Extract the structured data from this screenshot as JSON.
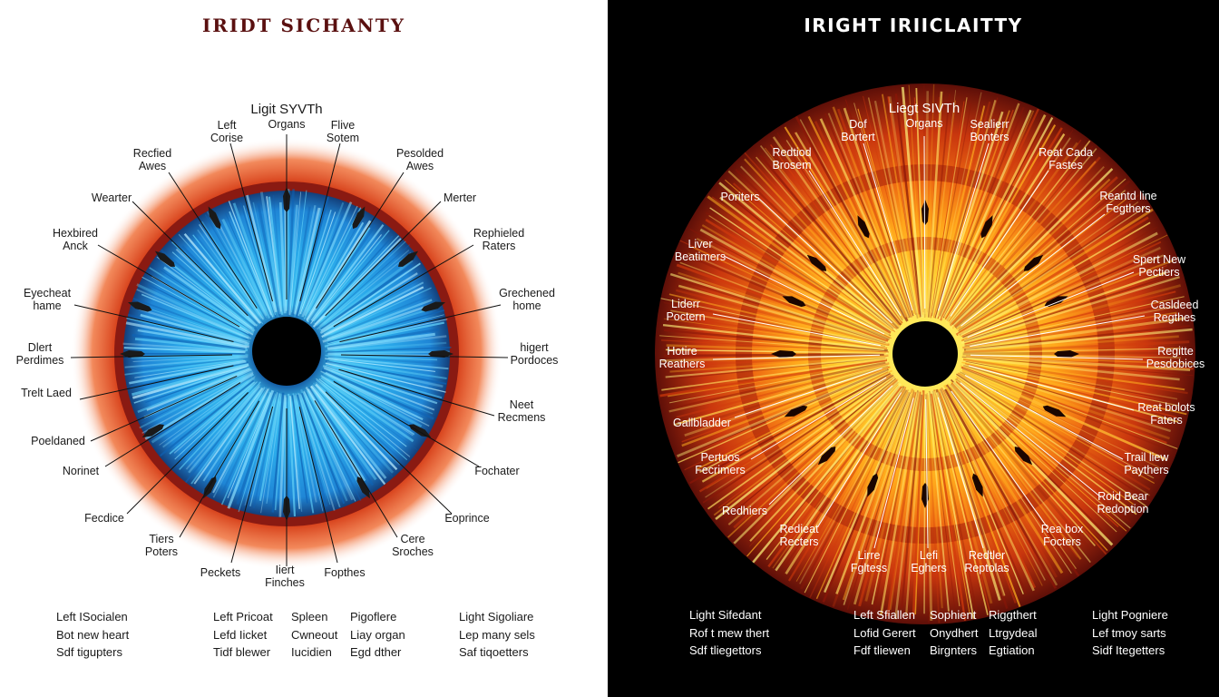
{
  "left_panel": {
    "title": "IRIDT SICHANTY",
    "top_label": "Ligit SYVTh",
    "labels": [
      "Organs",
      "Left\nCorise",
      "Flive\nSotem",
      "Recfied\nAwes",
      "Pesolded\nAwes",
      "Wearter",
      "Merter",
      "Hexbired\nAnck",
      "Rephieled\nRaters",
      "Eyecheat\nhame",
      "Grechened\nhome",
      "Dlert\nPerdimes",
      "higert\nPordoces",
      "Trelt Laed",
      "Neet\nRecmens",
      "Poeldaned",
      "Norinet",
      "Fochater",
      "Fecdice",
      "Eoprince",
      "Tiers\nPoters",
      "Cere\nSroches",
      "Peckets",
      "Iiert\nFinches",
      "Fopthes"
    ],
    "legend_columns": [
      [
        "Left ISocialen",
        "Bot new heart",
        "Sdf tigupters"
      ],
      [
        "Left Pricoat",
        "Lefd Iicket",
        "Tidf blewer"
      ],
      [
        "Spleen",
        "Cwneout",
        "Iucidien"
      ],
      [
        "Pigoflere",
        "Liay organ",
        "Egd dther"
      ],
      [
        "Light Sigoliare",
        "Lep many sels",
        "Saf tiqoetters"
      ]
    ],
    "colors": {
      "iris": "#29a6e6",
      "iris_deep": "#1a78c9",
      "rim": "#7a1a12",
      "halo": "#e2552a",
      "pupil": "#000000",
      "text": "#1a1a1a",
      "title": "#5a1010"
    }
  },
  "right_panel": {
    "title": "IRIGHT IRIICLAITTY",
    "top_label": "Liegt SIVTh",
    "labels": [
      "Organs",
      "Dof\nBortert",
      "Sealierr\nBonters",
      "Redtiod\nBrosem",
      "Reat Cada\nFastes",
      "Poriters",
      "Reantd line\nFegthers",
      "Liver\nBeatimers",
      "Spert New\nPectiers",
      "Liderr\nPoctern",
      "Casldeed\nRegthes",
      "Hotire\nReathers",
      "Regitte\nPesdobices",
      "Gallbladder",
      "Reat bolots\nFaters",
      "Pertuos\nFecrimers",
      "Trail liew\nPaythers",
      "Redhiers",
      "Roid Bear\nRedoption",
      "Redieat\nRecters",
      "Rea box\nFocters",
      "Lirre\nFgltess",
      "Lefi\nEghers",
      "Redtler\nReptolas"
    ],
    "legend_columns": [
      [
        "Light Sifedant",
        "Rof t mew thert",
        "Sdf tliegettors"
      ],
      [
        "Left Sfiallen",
        "Lofid Gerert",
        "Fdf tliewen"
      ],
      [
        "Sophient",
        "Onydhert",
        "Birgnters"
      ],
      [
        "Riggthert",
        "Ltrgydeal",
        "Egtiation"
      ],
      [
        "Light Pogniere",
        "Lef tmoy sarts",
        "Sidf Itegetters"
      ]
    ],
    "colors": {
      "core": "#ffe24a",
      "mid": "#ffa215",
      "outer": "#d23e10",
      "edge": "#6e120a",
      "band": "#b5260e",
      "pupil": "#000000",
      "text": "#ffffff"
    }
  }
}
